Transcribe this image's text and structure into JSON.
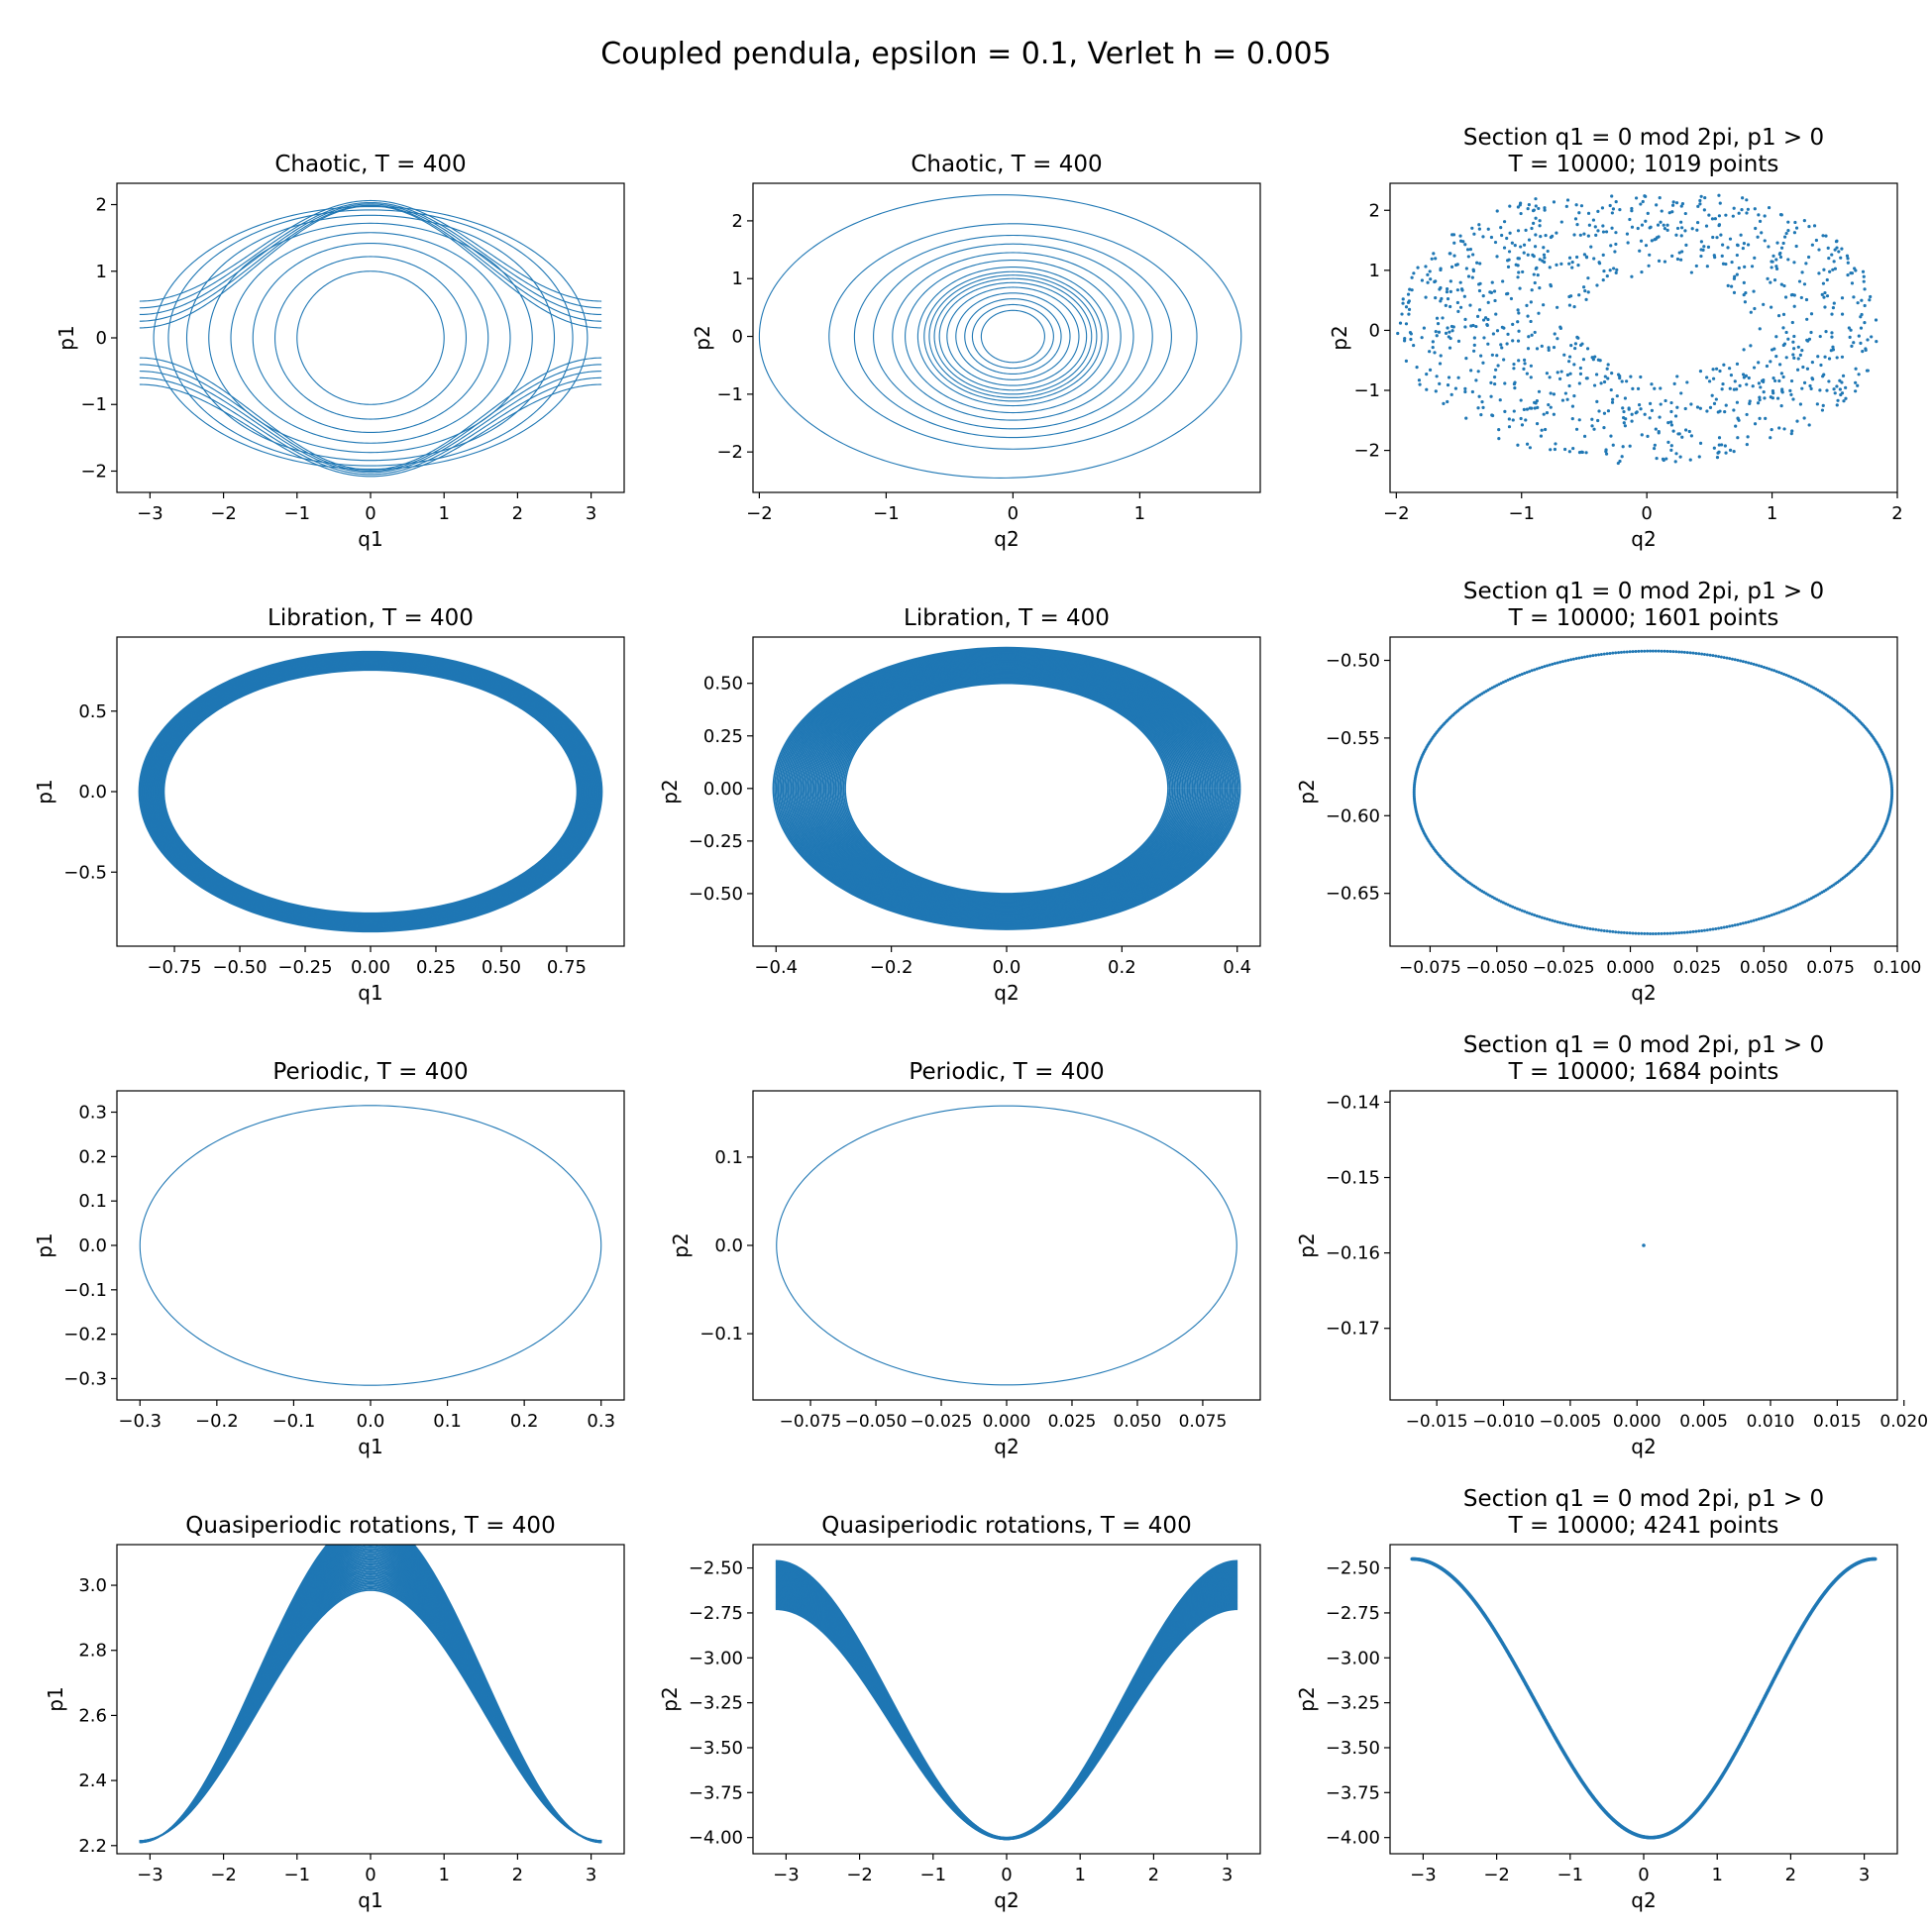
{
  "figure": {
    "title": "Coupled pendula, epsilon = 0.1, Verlet h = 0.005"
  },
  "colors": {
    "series": "#1f77b4"
  },
  "chart_data": [
    {
      "id": "chaotic-q1p1",
      "type": "line",
      "title": [
        "Chaotic, T = 400"
      ],
      "xlabel": "q1",
      "ylabel": "p1",
      "xlim": [
        -3.45,
        3.45
      ],
      "ylim": [
        -2.32,
        2.32
      ],
      "xticks": [
        -3,
        -2,
        -1,
        0,
        1,
        2,
        3
      ],
      "xticklabels": [
        "−3",
        "−2",
        "−1",
        "0",
        "1",
        "2",
        "3"
      ],
      "yticks": [
        -2,
        -1,
        0,
        1,
        2
      ],
      "yticklabels": [
        "−2",
        "−1",
        "0",
        "1",
        "2"
      ],
      "curves": [
        {
          "shape": "ellipse",
          "cx": 0,
          "cy": 0,
          "rx": 1.0,
          "ry": 1.0
        },
        {
          "shape": "ellipse",
          "cx": 0,
          "cy": 0,
          "rx": 1.3,
          "ry": 1.22
        },
        {
          "shape": "ellipse",
          "cx": 0,
          "cy": 0,
          "rx": 1.6,
          "ry": 1.42
        },
        {
          "shape": "ellipse",
          "cx": 0,
          "cy": 0,
          "rx": 1.9,
          "ry": 1.58
        },
        {
          "shape": "ellipse",
          "cx": 0,
          "cy": 0,
          "rx": 2.2,
          "ry": 1.72
        },
        {
          "shape": "ellipse",
          "cx": 0,
          "cy": 0,
          "rx": 2.5,
          "ry": 1.84
        },
        {
          "shape": "ellipse",
          "cx": 0,
          "cy": 0,
          "rx": 2.75,
          "ry": 1.92
        },
        {
          "shape": "ellipse",
          "cx": 0,
          "cy": 0,
          "rx": 2.95,
          "ry": 1.97
        },
        {
          "shape": "separatrix",
          "p0": 0.55,
          "pmax": 2.06
        },
        {
          "shape": "separatrix",
          "p0": 0.45,
          "pmax": 2.03
        },
        {
          "shape": "separatrix",
          "p0": 0.35,
          "pmax": 2.01
        },
        {
          "shape": "separatrix",
          "p0": 0.25,
          "pmax": 1.99
        },
        {
          "shape": "separatrix",
          "p0": 0.15,
          "pmax": 1.98
        },
        {
          "shape": "separatrix",
          "p0": -0.3,
          "pmax": -1.98
        },
        {
          "shape": "separatrix",
          "p0": -0.4,
          "pmax": -2.0
        },
        {
          "shape": "separatrix",
          "p0": -0.5,
          "pmax": -2.02
        },
        {
          "shape": "separatrix",
          "p0": -0.6,
          "pmax": -2.05
        },
        {
          "shape": "separatrix",
          "p0": -0.7,
          "pmax": -2.08
        }
      ]
    },
    {
      "id": "chaotic-q2p2",
      "type": "line",
      "title": [
        "Chaotic, T = 400"
      ],
      "xlabel": "q2",
      "ylabel": "p2",
      "xlim": [
        -2.05,
        1.95
      ],
      "ylim": [
        -2.7,
        2.65
      ],
      "xticks": [
        -2,
        -1,
        0,
        1
      ],
      "xticklabels": [
        "−2",
        "−1",
        "0",
        "1"
      ],
      "yticks": [
        -2,
        -1,
        0,
        1,
        2
      ],
      "yticklabels": [
        "−2",
        "−1",
        "0",
        "1",
        "2"
      ],
      "curves": [
        {
          "shape": "ellipse",
          "cx": 0,
          "cy": 0,
          "rx": 0.25,
          "ry": 0.45
        },
        {
          "shape": "ellipse",
          "cx": 0,
          "cy": 0,
          "rx": 0.32,
          "ry": 0.55
        },
        {
          "shape": "ellipse",
          "cx": 0,
          "cy": 0,
          "rx": 0.38,
          "ry": 0.65
        },
        {
          "shape": "ellipse",
          "cx": 0,
          "cy": 0,
          "rx": 0.45,
          "ry": 0.75
        },
        {
          "shape": "ellipse",
          "cx": 0,
          "cy": 0,
          "rx": 0.52,
          "ry": 0.85
        },
        {
          "shape": "ellipse",
          "cx": 0,
          "cy": 0,
          "rx": 0.58,
          "ry": 0.93
        },
        {
          "shape": "ellipse",
          "cx": 0,
          "cy": 0,
          "rx": 0.62,
          "ry": 1.0
        },
        {
          "shape": "ellipse",
          "cx": 0,
          "cy": 0,
          "rx": 0.66,
          "ry": 1.06
        },
        {
          "shape": "ellipse",
          "cx": 0,
          "cy": 0,
          "rx": 0.7,
          "ry": 1.12
        },
        {
          "shape": "ellipse",
          "cx": 0,
          "cy": 0,
          "rx": 0.75,
          "ry": 1.2
        },
        {
          "shape": "ellipse",
          "cx": 0,
          "cy": 0,
          "rx": 0.85,
          "ry": 1.32
        },
        {
          "shape": "ellipse",
          "cx": 0,
          "cy": 0,
          "rx": 0.95,
          "ry": 1.45
        },
        {
          "shape": "ellipse",
          "cx": 0,
          "cy": 0,
          "rx": 1.1,
          "ry": 1.6
        },
        {
          "shape": "ellipse",
          "cx": 0,
          "cy": 0,
          "rx": 1.25,
          "ry": 1.75
        },
        {
          "shape": "ellipse",
          "cx": 0,
          "cy": 0,
          "rx": 1.45,
          "ry": 1.95
        },
        {
          "shape": "ellipse",
          "cx": -0.1,
          "cy": 0,
          "rx": 1.9,
          "ry": 2.45
        }
      ]
    },
    {
      "id": "chaotic-section",
      "type": "scatter",
      "title": [
        "Section q1 = 0 mod 2pi, p1 > 0",
        "T = 10000; 1019 points"
      ],
      "xlabel": "q2",
      "ylabel": "p2",
      "xlim": [
        -2.05,
        2.0
      ],
      "ylim": [
        -2.7,
        2.45
      ],
      "xticks": [
        -2,
        -1,
        0,
        1,
        2
      ],
      "xticklabels": [
        "−2",
        "−1",
        "0",
        "1",
        "2"
      ],
      "yticks": [
        -2,
        -1,
        0,
        1,
        2
      ],
      "yticklabels": [
        "−2",
        "−1",
        "0",
        "1",
        "2"
      ],
      "points": {
        "kind": "chaotic_cloud",
        "count": 1019
      }
    },
    {
      "id": "libration-q1p1",
      "type": "line",
      "title": [
        "Libration, T = 400"
      ],
      "xlabel": "q1",
      "ylabel": "p1",
      "xlim": [
        -0.97,
        0.97
      ],
      "ylim": [
        -0.96,
        0.96
      ],
      "xticks": [
        -0.75,
        -0.5,
        -0.25,
        0,
        0.25,
        0.5,
        0.75
      ],
      "xticklabels": [
        "−0.75",
        "−0.50",
        "−0.25",
        "0.00",
        "0.25",
        "0.50",
        "0.75"
      ],
      "yticks": [
        -0.5,
        0,
        0.5
      ],
      "yticklabels": [
        "−0.5",
        "0.0",
        "0.5"
      ],
      "band": {
        "rx": [
          0.79,
          0.885
        ],
        "ry": [
          0.755,
          0.87
        ],
        "count": 40
      }
    },
    {
      "id": "libration-q2p2",
      "type": "line",
      "title": [
        "Libration, T = 400"
      ],
      "xlabel": "q2",
      "ylabel": "p2",
      "xlim": [
        -0.44,
        0.44
      ],
      "ylim": [
        -0.75,
        0.72
      ],
      "xticks": [
        -0.4,
        -0.2,
        0,
        0.2,
        0.4
      ],
      "xticklabels": [
        "−0.4",
        "−0.2",
        "0.0",
        "0.2",
        "0.4"
      ],
      "yticks": [
        -0.5,
        -0.25,
        0,
        0.25,
        0.5
      ],
      "yticklabels": [
        "−0.50",
        "−0.25",
        "0.00",
        "0.25",
        "0.50"
      ],
      "band": {
        "rx": [
          0.28,
          0.405
        ],
        "ry": [
          0.5,
          0.67
        ],
        "count": 45
      }
    },
    {
      "id": "libration-section",
      "type": "scatter",
      "title": [
        "Section q1 = 0 mod 2pi, p1 > 0",
        "T = 10000; 1601 points"
      ],
      "xlabel": "q2",
      "ylabel": "p2",
      "xlim": [
        -0.09,
        0.1
      ],
      "ylim": [
        -0.684,
        -0.485
      ],
      "xticks": [
        -0.075,
        -0.05,
        -0.025,
        0,
        0.025,
        0.05,
        0.075,
        0.1
      ],
      "xticklabels": [
        "−0.075",
        "−0.050",
        "−0.025",
        "0.000",
        "0.025",
        "0.050",
        "0.075",
        "0.100"
      ],
      "yticks": [
        -0.65,
        -0.6,
        -0.55,
        -0.5
      ],
      "yticklabels": [
        "−0.65",
        "−0.60",
        "−0.55",
        "−0.50"
      ],
      "points": {
        "kind": "ellipse",
        "count": 1601,
        "cx": 0.0085,
        "cy": -0.585,
        "rx": 0.0895,
        "ry": 0.091
      }
    },
    {
      "id": "periodic-q1p1",
      "type": "line",
      "title": [
        "Periodic, T = 400"
      ],
      "xlabel": "q1",
      "ylabel": "p1",
      "xlim": [
        -0.33,
        0.33
      ],
      "ylim": [
        -0.348,
        0.348
      ],
      "xticks": [
        -0.3,
        -0.2,
        -0.1,
        0,
        0.1,
        0.2,
        0.3
      ],
      "xticklabels": [
        "−0.3",
        "−0.2",
        "−0.1",
        "0.0",
        "0.1",
        "0.2",
        "0.3"
      ],
      "yticks": [
        -0.3,
        -0.2,
        -0.1,
        0,
        0.1,
        0.2,
        0.3
      ],
      "yticklabels": [
        "−0.3",
        "−0.2",
        "−0.1",
        "0.0",
        "0.1",
        "0.2",
        "0.3"
      ],
      "curves": [
        {
          "shape": "ellipse",
          "cx": 0,
          "cy": 0,
          "rx": 0.3,
          "ry": 0.315
        }
      ]
    },
    {
      "id": "periodic-q2p2",
      "type": "line",
      "title": [
        "Periodic, T = 400"
      ],
      "xlabel": "q2",
      "ylabel": "p2",
      "xlim": [
        -0.097,
        0.097
      ],
      "ylim": [
        -0.175,
        0.175
      ],
      "xticks": [
        -0.075,
        -0.05,
        -0.025,
        0,
        0.025,
        0.05,
        0.075
      ],
      "xticklabels": [
        "−0.075",
        "−0.050",
        "−0.025",
        "0.000",
        "0.025",
        "0.050",
        "0.075"
      ],
      "yticks": [
        -0.1,
        0,
        0.1
      ],
      "yticklabels": [
        "−0.1",
        "0.0",
        "0.1"
      ],
      "curves": [
        {
          "shape": "ellipse",
          "cx": 0,
          "cy": 0,
          "rx": 0.088,
          "ry": 0.158
        }
      ]
    },
    {
      "id": "periodic-section",
      "type": "scatter",
      "title": [
        "Section q1 = 0 mod 2pi, p1 > 0",
        "T = 10000; 1684 points"
      ],
      "xlabel": "q2",
      "ylabel": "p2",
      "xlim": [
        -0.0185,
        0.0195
      ],
      "ylim": [
        -0.1795,
        -0.1385
      ],
      "xticks": [
        -0.015,
        -0.01,
        -0.005,
        0,
        0.005,
        0.01,
        0.015,
        0.02
      ],
      "xticklabels": [
        "−0.015",
        "−0.010",
        "−0.005",
        "0.000",
        "0.005",
        "0.010",
        "0.015",
        "0.020"
      ],
      "yticks": [
        -0.17,
        -0.16,
        -0.15,
        -0.14
      ],
      "yticklabels": [
        "−0.17",
        "−0.16",
        "−0.15",
        "−0.14"
      ],
      "points": {
        "kind": "single",
        "count": 1684,
        "x": 0.0005,
        "y": -0.159
      }
    },
    {
      "id": "quasi-q1p1",
      "type": "line",
      "title": [
        "Quasiperiodic rotations, T = 400"
      ],
      "xlabel": "q1",
      "ylabel": "p1",
      "xlim": [
        -3.45,
        3.45
      ],
      "ylim": [
        2.175,
        3.125
      ],
      "xticks": [
        -3,
        -2,
        -1,
        0,
        1,
        2,
        3
      ],
      "xticklabels": [
        "−3",
        "−2",
        "−1",
        "0",
        "1",
        "2",
        "3"
      ],
      "yticks": [
        2.2,
        2.4,
        2.6,
        2.8,
        3.0
      ],
      "yticklabels": [
        "2.2",
        "2.4",
        "2.6",
        "2.8",
        "3.0"
      ],
      "wave": {
        "base": [
          2.6,
          2.71
        ],
        "amp": [
          0.385,
          0.5
        ],
        "phase": 0,
        "count": 45
      }
    },
    {
      "id": "quasi-q2p2",
      "type": "line",
      "title": [
        "Quasiperiodic rotations, T = 400"
      ],
      "xlabel": "q2",
      "ylabel": "p2",
      "xlim": [
        -3.45,
        3.45
      ],
      "ylim": [
        -4.09,
        -2.37
      ],
      "xticks": [
        -3,
        -2,
        -1,
        0,
        1,
        2,
        3
      ],
      "xticklabels": [
        "−3",
        "−2",
        "−1",
        "0",
        "1",
        "2",
        "3"
      ],
      "yticks": [
        -4.0,
        -3.75,
        -3.5,
        -3.25,
        -3.0,
        -2.75,
        -2.5
      ],
      "yticklabels": [
        "−4.00",
        "−3.75",
        "−3.50",
        "−3.25",
        "−3.00",
        "−2.75",
        "−2.50"
      ],
      "wave": {
        "base": [
          -3.37,
          -3.23
        ],
        "amp": [
          -0.64,
          -0.77
        ],
        "phase": 0,
        "count": 45
      }
    },
    {
      "id": "quasi-section",
      "type": "scatter",
      "title": [
        "Section q1 = 0 mod 2pi, p1 > 0",
        "T = 10000; 4241 points"
      ],
      "xlabel": "q2",
      "ylabel": "p2",
      "xlim": [
        -3.45,
        3.45
      ],
      "ylim": [
        -4.09,
        -2.37
      ],
      "xticks": [
        -3,
        -2,
        -1,
        0,
        1,
        2,
        3
      ],
      "xticklabels": [
        "−3",
        "−2",
        "−1",
        "0",
        "1",
        "2",
        "3"
      ],
      "yticks": [
        -4.0,
        -3.75,
        -3.5,
        -3.25,
        -3.0,
        -2.75,
        -2.5
      ],
      "yticklabels": [
        "−4.00",
        "−3.75",
        "−3.50",
        "−3.25",
        "−3.00",
        "−2.75",
        "−2.50"
      ],
      "points": {
        "kind": "cosine",
        "count": 4241,
        "base": -3.225,
        "amp": -0.775,
        "x0": 0.1
      }
    }
  ]
}
